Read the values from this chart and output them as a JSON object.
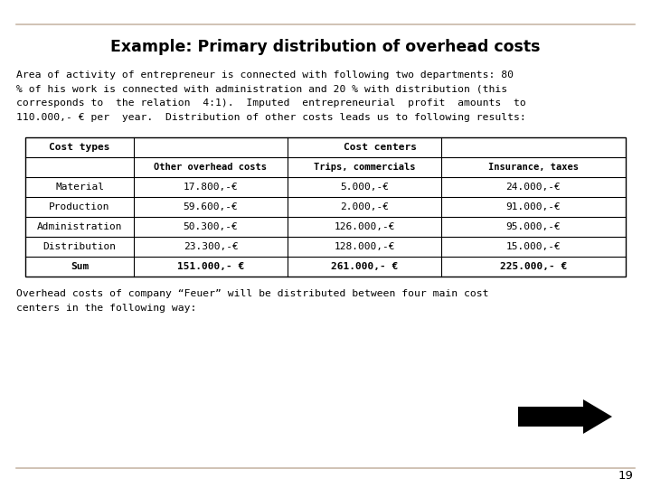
{
  "title": "Example: Primary distribution of overhead costs",
  "paragraph1_lines": [
    "Area of activity of entrepreneur is connected with following two departments: 80",
    "% of his work is connected with administration and 20 % with distribution (this",
    "corresponds to  the relation  4:1).  Imputed  entrepreneurial  profit  amounts  to",
    "110.000,- € per  year.  Distribution of other costs leads us to following results:"
  ],
  "paragraph2_lines": [
    "Overhead costs of company “Feuer” will be distributed between four main cost",
    "centers in the following way:"
  ],
  "table_rows": [
    [
      "Material",
      "17.800,-€",
      "5.000,-€",
      "24.000,-€"
    ],
    [
      "Production",
      "59.600,-€",
      "2.000,-€",
      "91.000,-€"
    ],
    [
      "Administration",
      "50.300,-€",
      "126.000,-€",
      "95.000,-€"
    ],
    [
      "Distribution",
      "23.300,-€",
      "128.000,-€",
      "15.000,-€"
    ],
    [
      "Sum",
      "151.000,- €",
      "261.000,- €",
      "225.000,- €"
    ]
  ],
  "page_number": "19",
  "bg_color": "#ffffff",
  "line_color": "#c8b8a8",
  "table_border": "#000000",
  "font_name": "DejaVu Sans"
}
